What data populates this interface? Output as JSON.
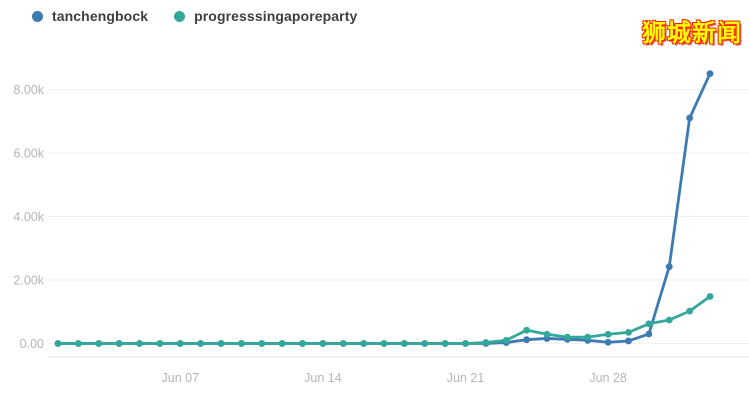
{
  "watermark": {
    "text": "狮城新闻",
    "fill_color": "#ffff00",
    "outline_color": "#ff2000"
  },
  "legend": {
    "items": [
      {
        "label": "tanchengbock",
        "color": "#3d7ab2"
      },
      {
        "label": "progresssingaporeparty",
        "color": "#33a89a"
      }
    ]
  },
  "chart_data": {
    "type": "line",
    "title": "",
    "xlabel": "",
    "ylabel": "",
    "x": [
      "Jun 01",
      "Jun 02",
      "Jun 03",
      "Jun 04",
      "Jun 05",
      "Jun 06",
      "Jun 07",
      "Jun 08",
      "Jun 09",
      "Jun 10",
      "Jun 11",
      "Jun 12",
      "Jun 13",
      "Jun 14",
      "Jun 15",
      "Jun 16",
      "Jun 17",
      "Jun 18",
      "Jun 19",
      "Jun 20",
      "Jun 21",
      "Jun 22",
      "Jun 23",
      "Jun 24",
      "Jun 25",
      "Jun 26",
      "Jun 27",
      "Jun 28",
      "Jun 29",
      "Jun 30",
      "Jul 01",
      "Jul 02",
      "Jul 03"
    ],
    "series": [
      {
        "name": "tanchengbock",
        "color": "#3d7ab2",
        "values": [
          0,
          0,
          0,
          0,
          0,
          0,
          0,
          0,
          0,
          0,
          0,
          0,
          0,
          0,
          0,
          0,
          0,
          0,
          0,
          0,
          0,
          0,
          30,
          120,
          160,
          130,
          100,
          40,
          80,
          300,
          2420,
          7100,
          8500
        ]
      },
      {
        "name": "progresssingaporeparty",
        "color": "#33a89a",
        "values": [
          0,
          0,
          0,
          0,
          0,
          0,
          0,
          0,
          0,
          0,
          0,
          0,
          0,
          0,
          0,
          0,
          0,
          0,
          0,
          0,
          0,
          30,
          100,
          420,
          290,
          200,
          200,
          290,
          350,
          620,
          740,
          1020,
          1480
        ]
      }
    ],
    "x_tick_labels": [
      "Jun 07",
      "Jun 14",
      "Jun 21",
      "Jun 28"
    ],
    "y_ticks": [
      0,
      2000,
      4000,
      6000,
      8000
    ],
    "y_tick_labels": [
      "0.00",
      "2.00k",
      "4.00k",
      "6.00k",
      "8.00k"
    ],
    "ylim": [
      0,
      8930
    ],
    "grid": true,
    "legend_position": "top-left",
    "marker": "circle"
  }
}
